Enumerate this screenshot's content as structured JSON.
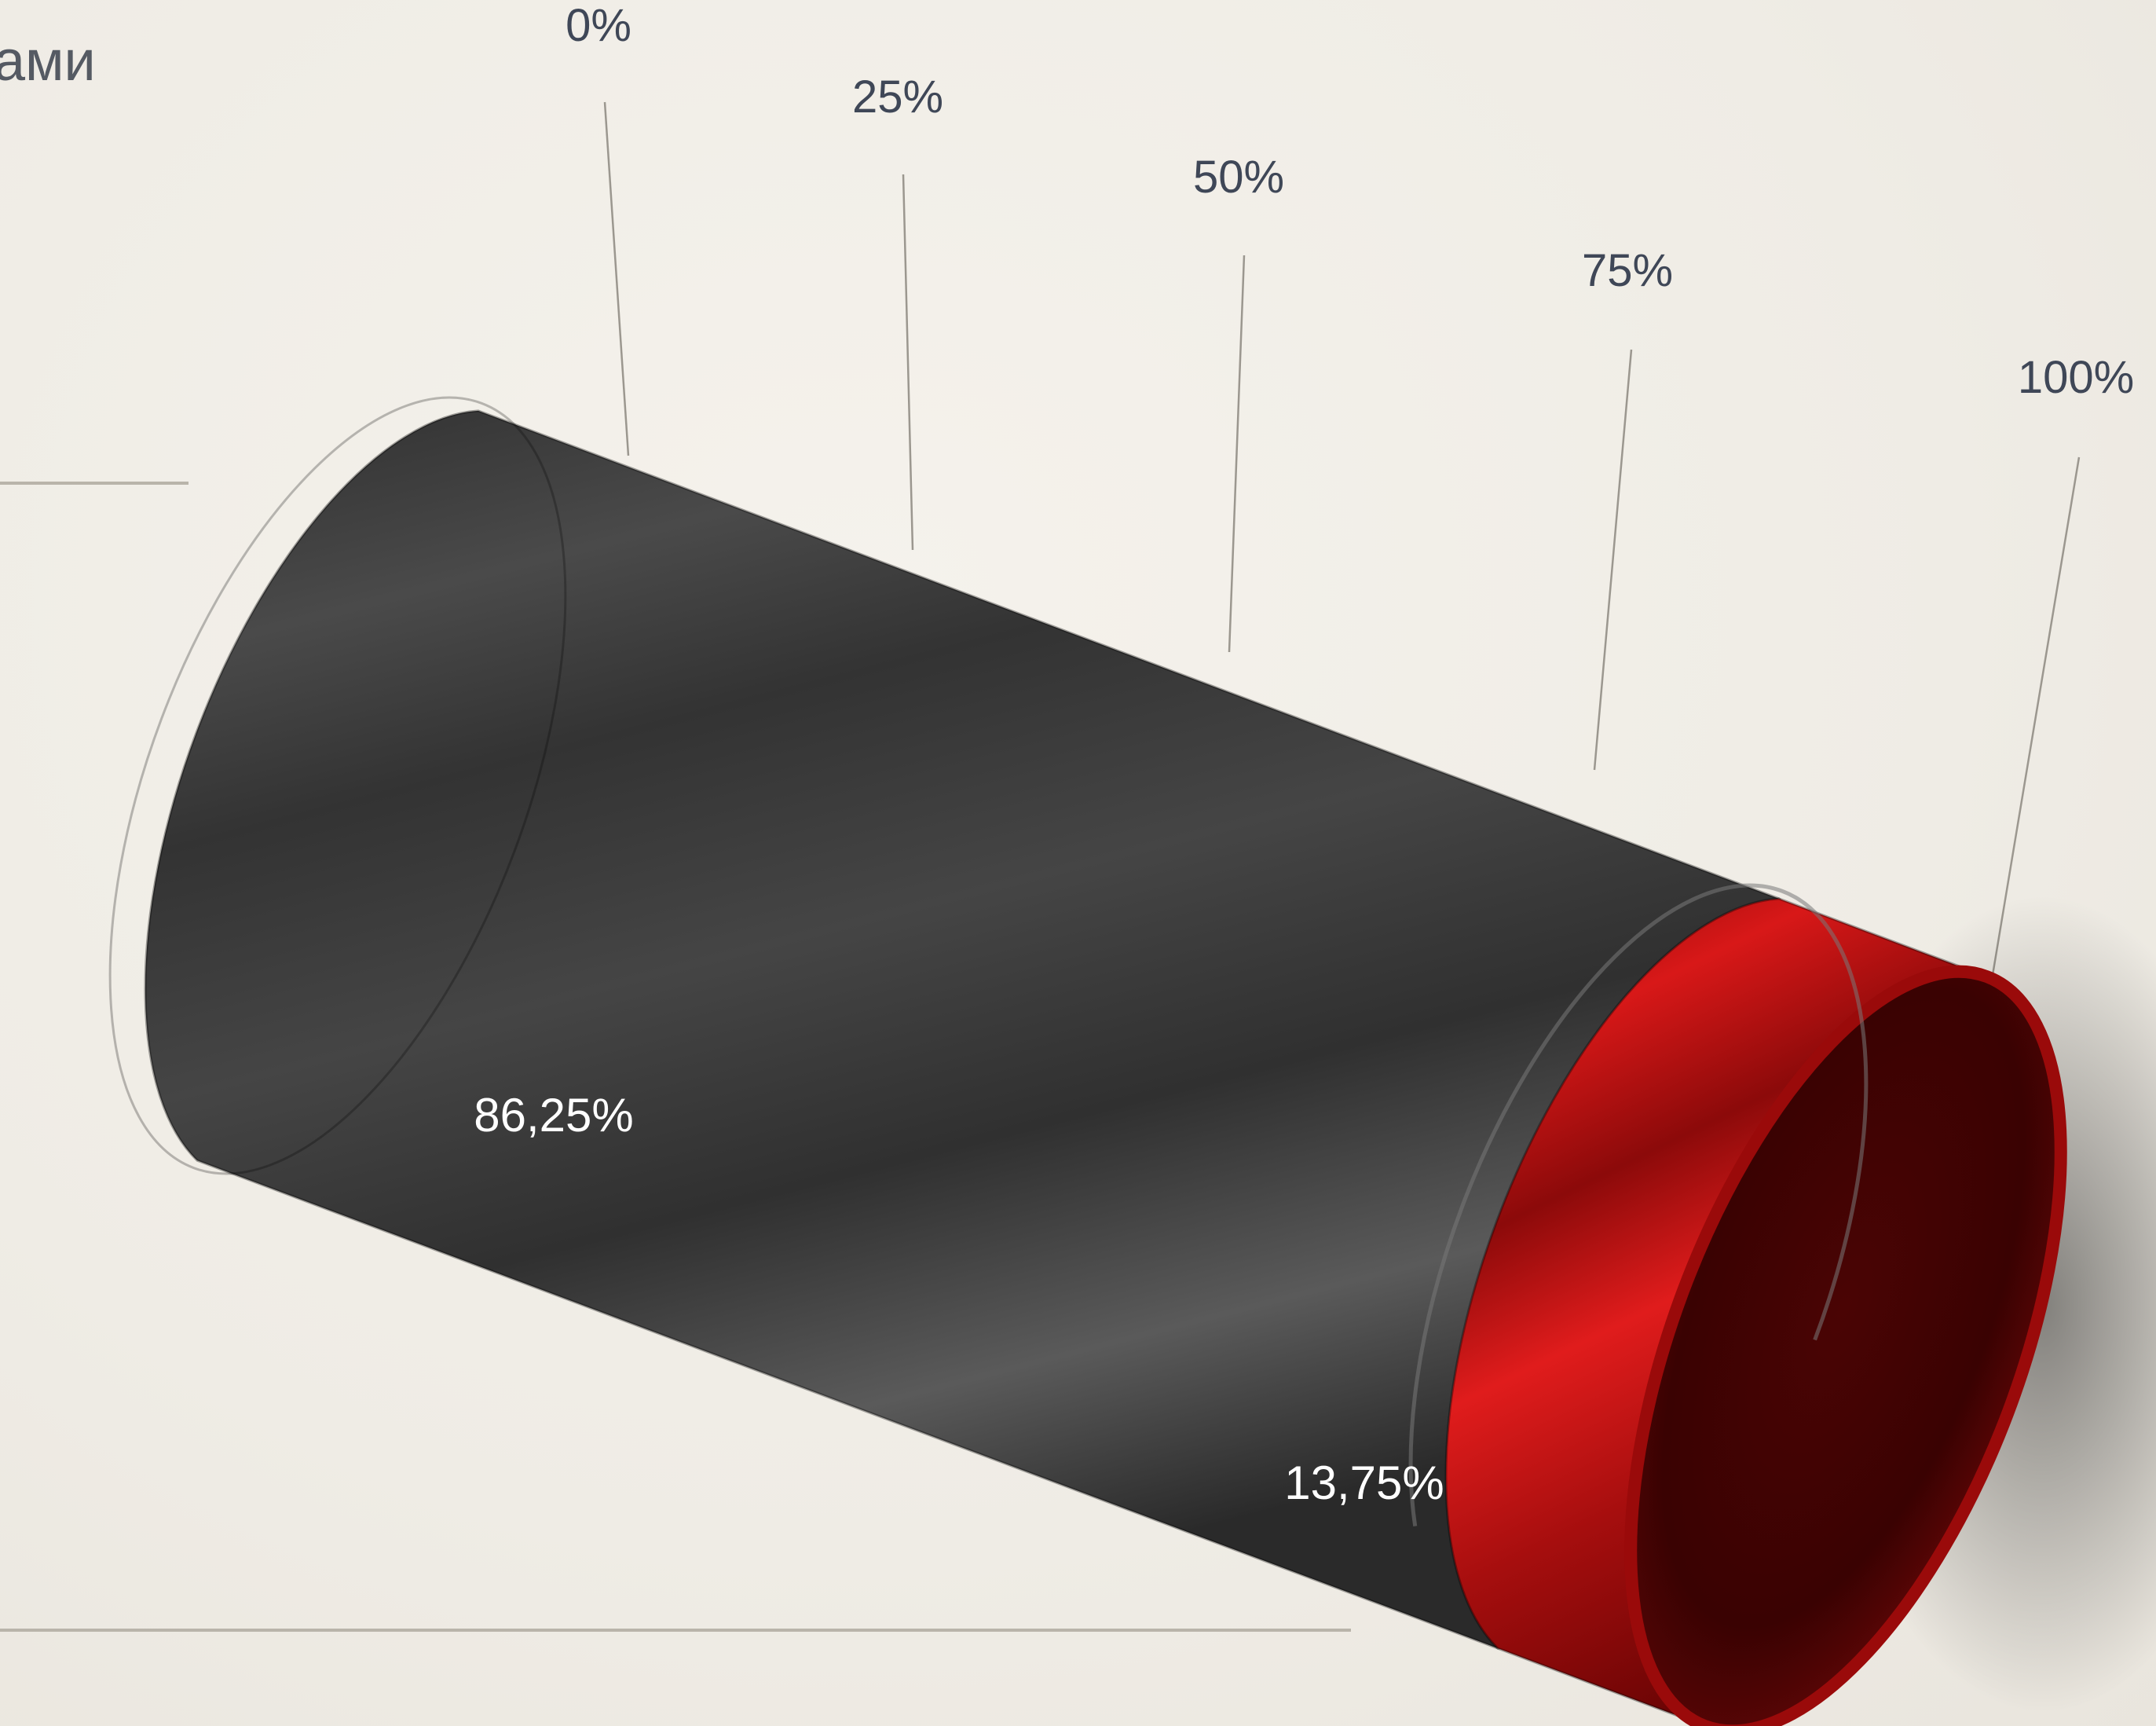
{
  "title": "ами",
  "chart_data": {
    "type": "bar",
    "title": "ами",
    "orientation": "horizontal-3d-cylinder",
    "stacked": true,
    "axis": {
      "min": 0,
      "max": 100,
      "unit": "%",
      "ticks": [
        0,
        25,
        50,
        75,
        100
      ],
      "tick_labels": [
        "0%",
        "25%",
        "50%",
        "75%",
        "100%"
      ],
      "grid": true
    },
    "series": [
      {
        "value": 86.25,
        "label": "86,25%",
        "color": "#3a3a3a"
      },
      {
        "value": 13.75,
        "label": "13,75%",
        "color": "#c01010"
      }
    ]
  }
}
